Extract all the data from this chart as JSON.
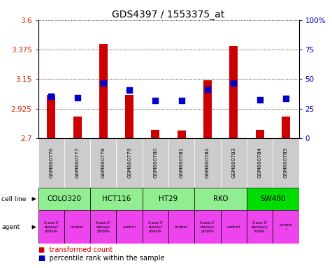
{
  "title": "GDS4397 / 1553375_at",
  "samples": [
    "GSM800776",
    "GSM800777",
    "GSM800778",
    "GSM800779",
    "GSM800780",
    "GSM800781",
    "GSM800782",
    "GSM800783",
    "GSM800784",
    "GSM800785"
  ],
  "red_values": [
    3.03,
    2.865,
    3.42,
    3.03,
    2.76,
    2.755,
    3.14,
    3.4,
    2.76,
    2.865
  ],
  "blue_values": [
    3.02,
    3.01,
    3.12,
    3.065,
    2.985,
    2.985,
    3.07,
    3.12,
    2.99,
    3.005
  ],
  "ymin": 2.7,
  "ymax": 3.6,
  "yticks": [
    2.7,
    2.925,
    3.15,
    3.375,
    3.6
  ],
  "ytick_labels": [
    "2.7",
    "2.925",
    "3.15",
    "3.375",
    "3.6"
  ],
  "right_yticks": [
    0,
    25,
    50,
    75,
    100
  ],
  "right_ytick_labels": [
    "0",
    "25",
    "50",
    "75",
    "100%"
  ],
  "cell_line_data": [
    {
      "label": "COLO320",
      "start": 0,
      "end": 2,
      "color": "#90ee90"
    },
    {
      "label": "HCT116",
      "start": 2,
      "end": 4,
      "color": "#90ee90"
    },
    {
      "label": "HT29",
      "start": 4,
      "end": 6,
      "color": "#90ee90"
    },
    {
      "label": "RKO",
      "start": 6,
      "end": 8,
      "color": "#90ee90"
    },
    {
      "label": "SW480",
      "start": 8,
      "end": 10,
      "color": "#00dd00"
    }
  ],
  "agent_labels": [
    "5-aza-2'\n-deoxyc\nytidine",
    "control",
    "5-aza-2'\n-deoxyc\nytidine",
    "control",
    "5-aza-2'\n-deoxyc\nytidine",
    "control",
    "5-aza-2'\n-deoxyc\nytidine",
    "control",
    "5-aza-2'\n-deoxycy\ntidine",
    "control\nl"
  ],
  "bar_color": "#cc0000",
  "dot_color": "#0000cc",
  "left_label_color": "#cc2200",
  "right_label_color": "#0000cc",
  "sample_bg_color": "#cccccc",
  "agent_color": "#ee44ee",
  "bar_width": 0.32,
  "dot_size": 28
}
